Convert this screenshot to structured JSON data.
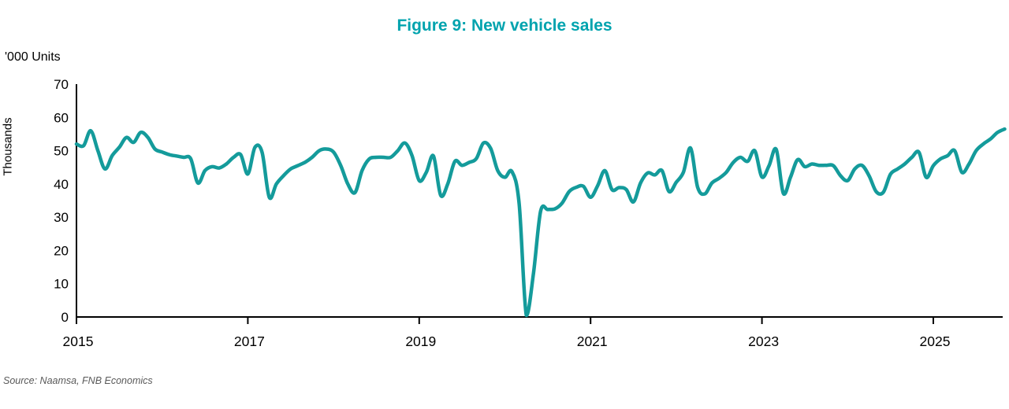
{
  "title": "Figure 9: New vehicle sales",
  "source": "Source: Naamsa, FNB Economics",
  "colors": {
    "title": "#00A3AE",
    "line": "#149B9B",
    "axis": "#000000",
    "source": "#595959"
  },
  "chart_data": {
    "type": "line",
    "title": "Figure 9: New vehicle sales",
    "units_label": "'000 Units",
    "ylabel": "Thousands",
    "xlabel": "",
    "ylim": [
      0,
      70
    ],
    "ytick_interval": 10,
    "x_tick_labels": [
      "2015",
      "2017",
      "2019",
      "2021",
      "2023",
      "2025"
    ],
    "frequency": "monthly",
    "start": "2015-01",
    "end": "2025-11",
    "grid": false,
    "legend": "none",
    "series": [
      {
        "name": "New vehicle sales ('000 units)",
        "values": [
          52.0,
          51.5,
          56.0,
          50.0,
          44.5,
          48.5,
          51.0,
          54.0,
          52.5,
          55.5,
          54.0,
          50.5,
          49.6,
          48.8,
          48.4,
          48.0,
          47.6,
          40.3,
          44.0,
          45.2,
          44.8,
          46.0,
          48.0,
          48.8,
          43.0,
          51.0,
          49.5,
          36.0,
          40.0,
          42.5,
          44.5,
          45.5,
          46.5,
          48.0,
          50.0,
          50.5,
          49.6,
          45.6,
          40.0,
          37.4,
          44.0,
          47.5,
          48.0,
          48.0,
          48.0,
          50.0,
          52.3,
          48.5,
          41.0,
          43.5,
          48.4,
          36.6,
          40.0,
          46.8,
          45.6,
          46.5,
          47.6,
          52.3,
          50.7,
          44.0,
          42.0,
          43.7,
          34.0,
          0.5,
          13.0,
          31.8,
          32.3,
          32.5,
          34.2,
          37.7,
          39.0,
          39.3,
          36.0,
          39.5,
          44.0,
          38.3,
          38.9,
          38.3,
          34.6,
          40.3,
          43.3,
          42.7,
          44.0,
          37.7,
          40.5,
          43.5,
          50.8,
          39.0,
          37.0,
          40.3,
          41.7,
          43.5,
          46.5,
          48.0,
          46.8,
          50.0,
          42.1,
          45.5,
          50.4,
          37.2,
          42.0,
          47.3,
          45.2,
          46.0,
          45.6,
          45.6,
          45.5,
          42.5,
          41.0,
          44.5,
          45.6,
          42.5,
          37.7,
          37.5,
          42.9,
          44.5,
          46.0,
          48.0,
          49.5,
          42.0,
          45.5,
          47.5,
          48.5,
          50.0,
          43.5,
          46.0,
          50.0,
          52.0,
          53.5,
          55.5,
          56.5
        ]
      }
    ]
  }
}
